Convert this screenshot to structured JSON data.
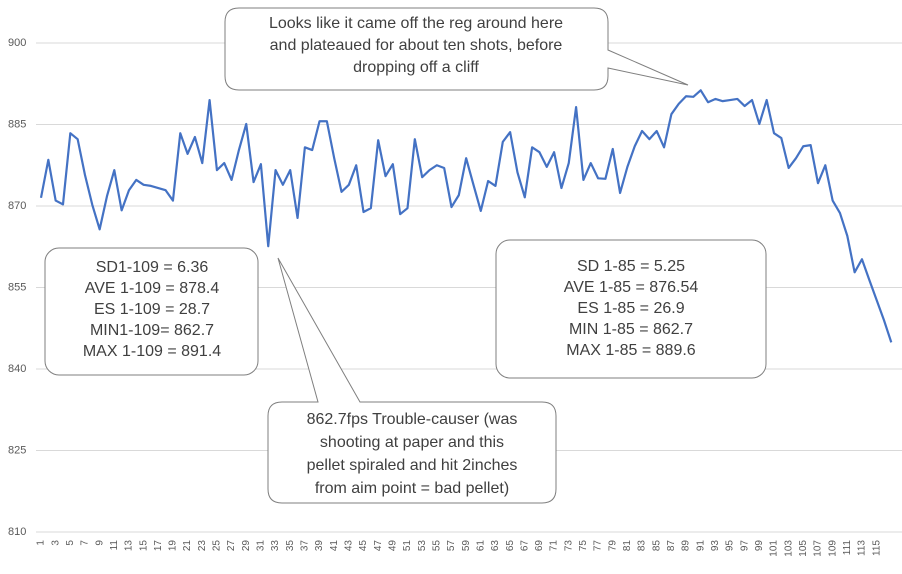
{
  "chart_data": {
    "type": "line",
    "categories": [
      1,
      null,
      3,
      null,
      5,
      null,
      7,
      null,
      9,
      null,
      11,
      null,
      13,
      null,
      15,
      null,
      17,
      null,
      19,
      null,
      21,
      null,
      23,
      null,
      25,
      null,
      27,
      null,
      29,
      null,
      31,
      null,
      33,
      null,
      35,
      null,
      37,
      null,
      39,
      null,
      41,
      null,
      43,
      null,
      45,
      null,
      47,
      null,
      49,
      null,
      51,
      null,
      53,
      null,
      55,
      null,
      57,
      null,
      59,
      null,
      61,
      null,
      63,
      null,
      65,
      null,
      67,
      null,
      69,
      null,
      71,
      null,
      73,
      null,
      75,
      null,
      77,
      null,
      79,
      null,
      81,
      null,
      83,
      null,
      85,
      null,
      87,
      null,
      89,
      null,
      91,
      null,
      93,
      null,
      95,
      null,
      97,
      null,
      99,
      null,
      101,
      null,
      103,
      null,
      105,
      null,
      107,
      null,
      109,
      null,
      111,
      null,
      113,
      null,
      115,
      null,
      null
    ],
    "series": [
      {
        "color": "#4472c4",
        "values": [
          871.5,
          878.5,
          871,
          870.3,
          883.4,
          882.3,
          875.7,
          870.2,
          865.7,
          871.8,
          876.6,
          869.2,
          872.9,
          874.8,
          873.9,
          873.7,
          873.3,
          872.9,
          871,
          883.4,
          879.6,
          882.7,
          877.9,
          889.5,
          876.6,
          877.9,
          874.8,
          880.3,
          885.1,
          874.4,
          877.7,
          862.6,
          876.6,
          873.9,
          876.6,
          867.8,
          880.8,
          880.3,
          885.6,
          885.6,
          878.8,
          872.6,
          873.9,
          877.5,
          868.9,
          869.6,
          882.1,
          875.5,
          877.7,
          868.5,
          869.6,
          882.3,
          875.3,
          876.6,
          877.5,
          877,
          869.8,
          872,
          878.8,
          873.9,
          869.1,
          874.6,
          873.7,
          881.8,
          883.6,
          876.2,
          871.6,
          880.8,
          879.9,
          877.2,
          879.9,
          873.3,
          877.9,
          888.2,
          874.8,
          877.9,
          875.1,
          875,
          880.5,
          872.4,
          877.2,
          881,
          883.8,
          882.3,
          883.8,
          880.8,
          886.9,
          888.8,
          890.2,
          890.1,
          891.3,
          889.1,
          889.7,
          889.3,
          889.5,
          889.7,
          888.4,
          889.5,
          885.1,
          889.5,
          883.4,
          882.5,
          877,
          878.8,
          881,
          881.2,
          874.2,
          877.5,
          871,
          868.7,
          864.5,
          857.8,
          860.2,
          856.4,
          852.7,
          849,
          844.9
        ]
      }
    ],
    "ylim": [
      810,
      900
    ],
    "yticks": [
      810,
      825,
      840,
      855,
      870,
      885,
      900
    ],
    "grid": true,
    "annotations": [
      {
        "lines": [
          "Looks like it came off the reg around here",
          "and plateaued for about ten shots, before",
          "dropping off a cliff"
        ]
      },
      {
        "lines": [
          "SD1-109 = 6.36",
          "AVE 1-109 = 878.4",
          "ES 1-109 = 28.7",
          "MIN1-109= 862.7",
          "MAX 1-109 = 891.4"
        ]
      },
      {
        "lines": [
          "862.7fps Trouble-causer (was",
          "shooting at paper and this",
          "pellet spiraled and hit 2inches",
          "from aim point = bad pellet)"
        ]
      },
      {
        "lines": [
          "SD 1-85 = 5.25",
          "AVE 1-85 = 876.54",
          "ES 1-85 = 26.9",
          "MIN 1-85 = 862.7",
          "MAX 1-85 = 889.6"
        ]
      }
    ]
  }
}
